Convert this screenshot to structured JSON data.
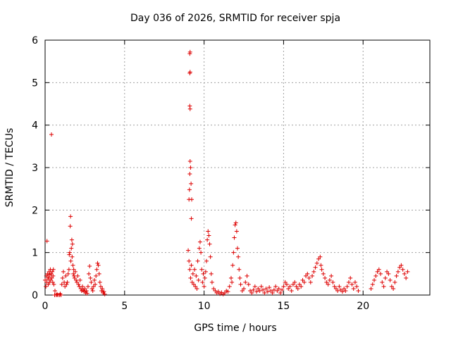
{
  "chart_data": {
    "type": "scatter",
    "title": "Day 036 of 2026, SRMTID for receiver spja",
    "xlabel": "GPS time / hours",
    "ylabel": "SRMTID / TECUs",
    "xlim": [
      0,
      24.2
    ],
    "ylim": [
      0,
      6
    ],
    "xticks": [
      0,
      5,
      10,
      15,
      20
    ],
    "yticks": [
      0,
      1,
      2,
      3,
      4,
      5,
      6
    ],
    "grid": true,
    "marker": "+",
    "color": "#dd0000",
    "series": [
      {
        "name": "SRMTID",
        "points": [
          [
            0.0,
            0.35
          ],
          [
            0.05,
            0.2
          ],
          [
            0.08,
            0.45
          ],
          [
            0.1,
            0.3
          ],
          [
            0.12,
            1.27
          ],
          [
            0.15,
            0.5
          ],
          [
            0.18,
            0.38
          ],
          [
            0.2,
            0.25
          ],
          [
            0.22,
            0.42
          ],
          [
            0.25,
            0.55
          ],
          [
            0.28,
            0.3
          ],
          [
            0.3,
            0.48
          ],
          [
            0.33,
            0.6
          ],
          [
            0.35,
            0.35
          ],
          [
            0.38,
            0.5
          ],
          [
            0.4,
            3.78
          ],
          [
            0.42,
            0.4
          ],
          [
            0.45,
            0.55
          ],
          [
            0.48,
            0.3
          ],
          [
            0.5,
            0.45
          ],
          [
            0.52,
            0.6
          ],
          [
            0.55,
            0.25
          ],
          [
            0.6,
            0.0
          ],
          [
            0.7,
            0.0
          ],
          [
            0.8,
            0.0
          ],
          [
            0.9,
            0.0
          ],
          [
            1.0,
            0.0
          ],
          [
            0.62,
            0.1
          ],
          [
            0.75,
            0.02
          ],
          [
            0.95,
            0.03
          ],
          [
            1.05,
            0.25
          ],
          [
            1.1,
            0.4
          ],
          [
            1.15,
            0.55
          ],
          [
            1.2,
            0.3
          ],
          [
            1.25,
            0.2
          ],
          [
            1.3,
            0.45
          ],
          [
            1.35,
            0.25
          ],
          [
            1.4,
            0.3
          ],
          [
            1.45,
            0.5
          ],
          [
            1.5,
            0.6
          ],
          [
            1.52,
            0.95
          ],
          [
            1.55,
            1.0
          ],
          [
            1.58,
            1.62
          ],
          [
            1.6,
            1.85
          ],
          [
            1.62,
            0.8
          ],
          [
            1.65,
            1.1
          ],
          [
            1.68,
            1.3
          ],
          [
            1.7,
            0.9
          ],
          [
            1.72,
            1.2
          ],
          [
            1.75,
            0.7
          ],
          [
            1.78,
            0.5
          ],
          [
            1.8,
            0.6
          ],
          [
            1.82,
            0.45
          ],
          [
            1.85,
            0.4
          ],
          [
            1.9,
            0.55
          ],
          [
            1.95,
            0.35
          ],
          [
            2.0,
            0.3
          ],
          [
            2.05,
            0.45
          ],
          [
            2.1,
            0.25
          ],
          [
            2.15,
            0.2
          ],
          [
            2.2,
            0.35
          ],
          [
            2.25,
            0.15
          ],
          [
            2.3,
            0.1
          ],
          [
            2.35,
            0.2
          ],
          [
            2.4,
            0.12
          ],
          [
            2.45,
            0.08
          ],
          [
            2.5,
            0.15
          ],
          [
            2.55,
            0.05
          ],
          [
            2.6,
            0.1
          ],
          [
            2.65,
            0.04
          ],
          [
            2.7,
            0.2
          ],
          [
            2.75,
            0.5
          ],
          [
            2.8,
            0.68
          ],
          [
            2.85,
            0.4
          ],
          [
            2.9,
            0.3
          ],
          [
            2.95,
            0.15
          ],
          [
            3.0,
            0.1
          ],
          [
            3.05,
            0.2
          ],
          [
            3.1,
            0.35
          ],
          [
            3.15,
            0.25
          ],
          [
            3.2,
            0.45
          ],
          [
            3.25,
            0.6
          ],
          [
            3.3,
            0.75
          ],
          [
            3.35,
            0.7
          ],
          [
            3.4,
            0.5
          ],
          [
            3.45,
            0.3
          ],
          [
            3.5,
            0.2
          ],
          [
            3.55,
            0.1
          ],
          [
            3.6,
            0.15
          ],
          [
            3.65,
            0.05
          ],
          [
            3.7,
            0.08
          ],
          [
            3.75,
            0.02
          ],
          [
            9.0,
            1.05
          ],
          [
            9.05,
            2.25
          ],
          [
            9.08,
            2.48
          ],
          [
            9.1,
            2.85
          ],
          [
            9.12,
            3.15
          ],
          [
            9.15,
            3.0
          ],
          [
            9.18,
            2.62
          ],
          [
            9.2,
            1.8
          ],
          [
            9.22,
            2.25
          ],
          [
            9.1,
            5.68
          ],
          [
            9.12,
            5.72
          ],
          [
            9.1,
            5.22
          ],
          [
            9.12,
            5.25
          ],
          [
            9.1,
            4.45
          ],
          [
            9.12,
            4.38
          ],
          [
            9.05,
            0.8
          ],
          [
            9.1,
            0.6
          ],
          [
            9.15,
            0.4
          ],
          [
            9.2,
            0.7
          ],
          [
            9.25,
            0.3
          ],
          [
            9.3,
            0.5
          ],
          [
            9.35,
            0.25
          ],
          [
            9.4,
            0.6
          ],
          [
            9.45,
            0.2
          ],
          [
            9.5,
            0.45
          ],
          [
            9.55,
            0.15
          ],
          [
            9.6,
            0.8
          ],
          [
            9.65,
            0.35
          ],
          [
            9.7,
            1.1
          ],
          [
            9.75,
            1.25
          ],
          [
            9.8,
            1.0
          ],
          [
            9.85,
            0.6
          ],
          [
            9.9,
            0.3
          ],
          [
            9.95,
            0.5
          ],
          [
            10.0,
            0.2
          ],
          [
            10.05,
            0.4
          ],
          [
            10.1,
            0.55
          ],
          [
            10.15,
            0.8
          ],
          [
            10.2,
            1.3
          ],
          [
            10.25,
            1.5
          ],
          [
            10.3,
            1.4
          ],
          [
            10.35,
            1.2
          ],
          [
            10.4,
            0.9
          ],
          [
            10.45,
            0.5
          ],
          [
            10.5,
            0.3
          ],
          [
            10.6,
            0.15
          ],
          [
            10.7,
            0.1
          ],
          [
            10.8,
            0.05
          ],
          [
            10.9,
            0.08
          ],
          [
            11.0,
            0.03
          ],
          [
            11.1,
            0.06
          ],
          [
            11.2,
            0.02
          ],
          [
            11.3,
            0.05
          ],
          [
            11.4,
            0.1
          ],
          [
            11.5,
            0.08
          ],
          [
            11.6,
            0.2
          ],
          [
            11.7,
            0.4
          ],
          [
            11.75,
            0.3
          ],
          [
            11.8,
            0.7
          ],
          [
            11.85,
            1.0
          ],
          [
            11.9,
            1.35
          ],
          [
            11.95,
            1.65
          ],
          [
            12.0,
            1.7
          ],
          [
            12.05,
            1.5
          ],
          [
            12.1,
            1.1
          ],
          [
            12.15,
            0.9
          ],
          [
            12.2,
            0.6
          ],
          [
            12.25,
            0.4
          ],
          [
            12.3,
            0.25
          ],
          [
            12.4,
            0.1
          ],
          [
            12.5,
            0.15
          ],
          [
            12.6,
            0.3
          ],
          [
            12.7,
            0.45
          ],
          [
            12.8,
            0.25
          ],
          [
            12.9,
            0.1
          ],
          [
            13.0,
            0.05
          ],
          [
            13.1,
            0.12
          ],
          [
            13.2,
            0.2
          ],
          [
            13.3,
            0.08
          ],
          [
            13.4,
            0.15
          ],
          [
            13.5,
            0.1
          ],
          [
            13.6,
            0.2
          ],
          [
            13.7,
            0.12
          ],
          [
            13.8,
            0.05
          ],
          [
            13.9,
            0.15
          ],
          [
            14.0,
            0.08
          ],
          [
            14.1,
            0.18
          ],
          [
            14.2,
            0.1
          ],
          [
            14.3,
            0.05
          ],
          [
            14.4,
            0.12
          ],
          [
            14.5,
            0.2
          ],
          [
            14.6,
            0.1
          ],
          [
            14.7,
            0.15
          ],
          [
            14.8,
            0.05
          ],
          [
            14.9,
            0.12
          ],
          [
            15.0,
            0.2
          ],
          [
            15.1,
            0.3
          ],
          [
            15.2,
            0.25
          ],
          [
            15.3,
            0.15
          ],
          [
            15.4,
            0.2
          ],
          [
            15.5,
            0.1
          ],
          [
            15.6,
            0.25
          ],
          [
            15.7,
            0.3
          ],
          [
            15.8,
            0.2
          ],
          [
            15.9,
            0.15
          ],
          [
            16.0,
            0.25
          ],
          [
            16.1,
            0.2
          ],
          [
            16.2,
            0.35
          ],
          [
            16.3,
            0.3
          ],
          [
            16.4,
            0.45
          ],
          [
            16.5,
            0.5
          ],
          [
            16.6,
            0.4
          ],
          [
            16.7,
            0.3
          ],
          [
            16.8,
            0.45
          ],
          [
            16.9,
            0.55
          ],
          [
            17.0,
            0.65
          ],
          [
            17.1,
            0.75
          ],
          [
            17.2,
            0.85
          ],
          [
            17.3,
            0.9
          ],
          [
            17.35,
            0.7
          ],
          [
            17.4,
            0.6
          ],
          [
            17.5,
            0.5
          ],
          [
            17.6,
            0.4
          ],
          [
            17.7,
            0.3
          ],
          [
            17.8,
            0.25
          ],
          [
            17.9,
            0.35
          ],
          [
            18.0,
            0.45
          ],
          [
            18.1,
            0.3
          ],
          [
            18.2,
            0.2
          ],
          [
            18.3,
            0.15
          ],
          [
            18.4,
            0.1
          ],
          [
            18.5,
            0.2
          ],
          [
            18.6,
            0.12
          ],
          [
            18.7,
            0.08
          ],
          [
            18.8,
            0.15
          ],
          [
            18.9,
            0.1
          ],
          [
            19.0,
            0.2
          ],
          [
            19.1,
            0.3
          ],
          [
            19.2,
            0.4
          ],
          [
            19.3,
            0.25
          ],
          [
            19.4,
            0.15
          ],
          [
            19.5,
            0.3
          ],
          [
            19.6,
            0.2
          ],
          [
            19.7,
            0.1
          ],
          [
            20.5,
            0.15
          ],
          [
            20.6,
            0.25
          ],
          [
            20.7,
            0.35
          ],
          [
            20.8,
            0.45
          ],
          [
            20.9,
            0.55
          ],
          [
            21.0,
            0.6
          ],
          [
            21.1,
            0.5
          ],
          [
            21.2,
            0.3
          ],
          [
            21.3,
            0.2
          ],
          [
            21.4,
            0.4
          ],
          [
            21.5,
            0.55
          ],
          [
            21.6,
            0.5
          ],
          [
            21.7,
            0.35
          ],
          [
            21.8,
            0.2
          ],
          [
            21.9,
            0.15
          ],
          [
            22.0,
            0.3
          ],
          [
            22.1,
            0.45
          ],
          [
            22.2,
            0.55
          ],
          [
            22.3,
            0.65
          ],
          [
            22.4,
            0.7
          ],
          [
            22.5,
            0.6
          ],
          [
            22.6,
            0.5
          ],
          [
            22.7,
            0.4
          ],
          [
            22.8,
            0.55
          ]
        ]
      }
    ]
  }
}
